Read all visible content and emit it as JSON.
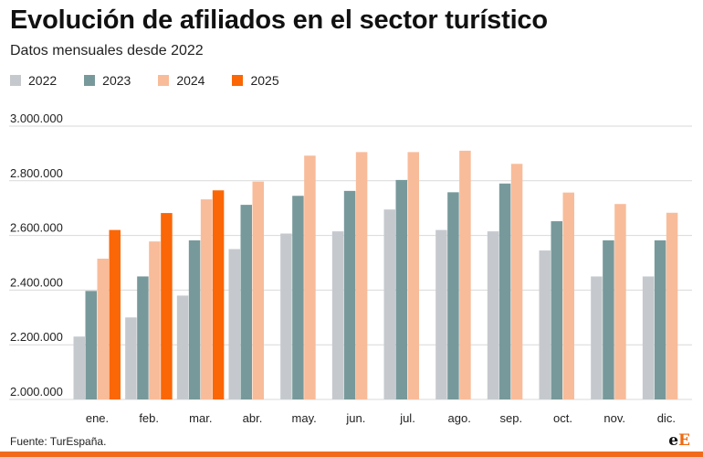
{
  "chart_data": {
    "type": "bar",
    "title": "Evolución de afiliados en el sector turístico",
    "subtitle": "Datos mensuales desde 2022",
    "categories": [
      "ene.",
      "feb.",
      "mar.",
      "abr.",
      "may.",
      "jun.",
      "jul.",
      "ago.",
      "sep.",
      "oct.",
      "nov.",
      "dic."
    ],
    "series": [
      {
        "name": "2022",
        "color": "#c5c9ce",
        "values": [
          2230000,
          2300000,
          2380000,
          2550000,
          2607000,
          2615000,
          2695000,
          2620000,
          2615000,
          2545000,
          2450000,
          2450000
        ]
      },
      {
        "name": "2023",
        "color": "#78999b",
        "values": [
          2397000,
          2450000,
          2582000,
          2712000,
          2745000,
          2763000,
          2803000,
          2758000,
          2790000,
          2652000,
          2582000,
          2582000
        ]
      },
      {
        "name": "2024",
        "color": "#f8bc9a",
        "values": [
          2515000,
          2578000,
          2732000,
          2797000,
          2892000,
          2905000,
          2905000,
          2910000,
          2862000,
          2757000,
          2715000,
          2683000
        ]
      },
      {
        "name": "2025",
        "color": "#fb6606",
        "values": [
          2620000,
          2682000,
          2765000,
          null,
          null,
          null,
          null,
          null,
          null,
          null,
          null,
          null
        ]
      }
    ],
    "yticks": [
      "3.000.000",
      "2.800.000",
      "2.600.000",
      "2.400.000",
      "2.200.000",
      "2.000.000"
    ],
    "ytick_values": [
      3000000,
      2800000,
      2600000,
      2400000,
      2200000,
      2000000
    ],
    "ylim": [
      2000000,
      3000000
    ],
    "grid": true,
    "legend_position": "top-left",
    "xlabel": "",
    "ylabel": ""
  },
  "source": "Fuente: TurEspaña.",
  "logo": {
    "first": "e",
    "second": "E"
  },
  "colors": {
    "accent_bar": "#f26b1d",
    "grid": "#d9d9d9"
  }
}
